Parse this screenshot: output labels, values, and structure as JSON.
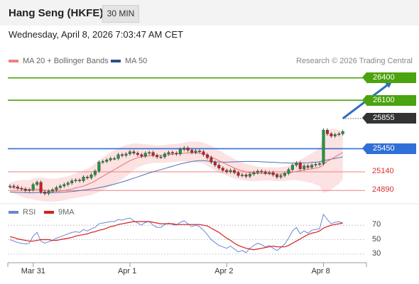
{
  "header": {
    "title": "Hang Seng (HKFE)",
    "timeframe": "30 MIN"
  },
  "timestamp": "Wednesday, April 8, 2026 7:03:47 AM CET",
  "legend": [
    {
      "label": "MA 20 + Bollinger Bands",
      "color": "#f08080"
    },
    {
      "label": "MA 50",
      "color": "#2c4f8c"
    }
  ],
  "credit": "Research © 2026 Trading Central",
  "colors": {
    "up": "#1a9a3a",
    "down": "#c82020",
    "resistance": "#4aa30f",
    "pivot": "#2f6fd8",
    "support": "#f08080",
    "current": "#333333",
    "arrow": "#2a6fbf",
    "band": "#fbd5d5",
    "rsi": "#6b86d6",
    "rsi_ma": "#d41f1f"
  },
  "chart_data": [
    {
      "type": "line",
      "name": "price",
      "x_ticks": [
        "Mar 31",
        "Apr 1",
        "Apr 2",
        "Apr 8"
      ],
      "x_tick_index": [
        6,
        31,
        56,
        81
      ],
      "ylim": [
        24750,
        26530
      ],
      "close": [
        24950,
        24940,
        24920,
        24910,
        24890,
        24900,
        24970,
        25000,
        24870,
        24850,
        24880,
        24900,
        24930,
        24950,
        24970,
        24990,
        25020,
        25030,
        25020,
        25070,
        25060,
        25100,
        25150,
        25270,
        25280,
        25300,
        25320,
        25320,
        25370,
        25360,
        25380,
        25410,
        25390,
        25370,
        25350,
        25390,
        25400,
        25360,
        25340,
        25340,
        25380,
        25400,
        25390,
        25380,
        25440,
        25460,
        25430,
        25400,
        25420,
        25410,
        25370,
        25330,
        25270,
        25230,
        25190,
        25160,
        25140,
        25160,
        25130,
        25090,
        25100,
        25080,
        25110,
        25130,
        25150,
        25140,
        25120,
        25130,
        25100,
        25070,
        25090,
        25120,
        25170,
        25230,
        25260,
        25180,
        25220,
        25200,
        25230,
        25240,
        25250,
        25700,
        25650,
        25620,
        25640,
        25650,
        25680
      ],
      "ma20": [
        24930,
        24925,
        24920,
        24915,
        24905,
        24900,
        24905,
        24910,
        24905,
        24895,
        24885,
        24880,
        24880,
        24885,
        24890,
        24900,
        24910,
        24925,
        24935,
        24950,
        24970,
        24990,
        25020,
        25050,
        25080,
        25110,
        25140,
        25170,
        25200,
        25230,
        25260,
        25290,
        25310,
        25330,
        25340,
        25350,
        25355,
        25360,
        25360,
        25360,
        25365,
        25370,
        25375,
        25380,
        25385,
        25390,
        25395,
        25395,
        25395,
        25390,
        25380,
        25360,
        25340,
        25315,
        25290,
        25265,
        25240,
        25215,
        25190,
        25170,
        25155,
        25140,
        25130,
        25125,
        25120,
        25120,
        25118,
        25115,
        25112,
        25110,
        25112,
        25118,
        25125,
        25135,
        25145,
        25155,
        25165,
        25175,
        25180,
        25190,
        25200,
        25240,
        25280,
        25310,
        25340,
        25370,
        25400
      ],
      "ma50": [
        24870,
        24868,
        24866,
        24864,
        24862,
        24860,
        24860,
        24862,
        24862,
        24860,
        24860,
        24860,
        24862,
        24865,
        24868,
        24872,
        24876,
        24882,
        24888,
        24895,
        24902,
        24910,
        24918,
        24928,
        24938,
        24950,
        24962,
        24975,
        24990,
        25005,
        25020,
        25038,
        25055,
        25072,
        25090,
        25108,
        25125,
        25140,
        25155,
        25170,
        25185,
        25200,
        25215,
        25230,
        25245,
        25258,
        25268,
        25278,
        25285,
        25290,
        25290,
        25285,
        25280,
        25275,
        25272,
        25270,
        25270,
        25272,
        25274,
        25276,
        25278,
        25280,
        25280,
        25280,
        25278,
        25275,
        25272,
        25270,
        25268,
        25265,
        25262,
        25260,
        25258,
        25258,
        25258,
        25258,
        25260,
        25262,
        25266,
        25270,
        25275,
        25290,
        25300,
        25310,
        25320,
        25330,
        25340
      ],
      "bb_upper": [
        25000,
        25010,
        25020,
        25030,
        25030,
        25030,
        25050,
        25060,
        25060,
        25060,
        25050,
        25050,
        25050,
        25060,
        25070,
        25080,
        25100,
        25120,
        25140,
        25160,
        25180,
        25210,
        25250,
        25290,
        25330,
        25370,
        25400,
        25430,
        25460,
        25480,
        25500,
        25510,
        25520,
        25520,
        25515,
        25510,
        25505,
        25500,
        25495,
        25495,
        25500,
        25505,
        25510,
        25515,
        25520,
        25530,
        25540,
        25545,
        25545,
        25540,
        25530,
        25510,
        25490,
        25460,
        25430,
        25400,
        25370,
        25340,
        25310,
        25290,
        25270,
        25250,
        25235,
        25220,
        25210,
        25205,
        25200,
        25200,
        25200,
        25200,
        25205,
        25210,
        25220,
        25240,
        25270,
        25300,
        25330,
        25360,
        25390,
        25420,
        25460,
        25620,
        25700,
        25720,
        25720,
        25700,
        25680
      ],
      "bb_lower": [
        24860,
        24850,
        24830,
        24810,
        24790,
        24780,
        24770,
        24760,
        24750,
        24740,
        24740,
        24740,
        24745,
        24750,
        24760,
        24770,
        24780,
        24790,
        24800,
        24810,
        24820,
        24830,
        24850,
        24870,
        24890,
        24920,
        24950,
        24980,
        25010,
        25040,
        25080,
        25120,
        25160,
        25200,
        25220,
        25240,
        25250,
        25260,
        25260,
        25260,
        25260,
        25265,
        25270,
        25275,
        25280,
        25280,
        25275,
        25270,
        25265,
        25260,
        25250,
        25220,
        25190,
        25160,
        25130,
        25110,
        25090,
        25070,
        25050,
        25040,
        25030,
        25020,
        25015,
        25015,
        25015,
        25020,
        25025,
        25025,
        25020,
        25015,
        25015,
        25020,
        25025,
        25030,
        25030,
        25020,
        25010,
        25000,
        24990,
        24970,
        24950,
        24860,
        24870,
        24900,
        24940,
        24980,
        25040
      ],
      "levels": [
        {
          "value": 26400,
          "label": "26400",
          "kind": "resistance"
        },
        {
          "value": 26100,
          "label": "26100",
          "kind": "resistance"
        },
        {
          "value": 25855,
          "label": "25855",
          "kind": "current"
        },
        {
          "value": 25450,
          "label": "25450",
          "kind": "pivot"
        },
        {
          "value": 25140,
          "label": "25140",
          "kind": "support"
        },
        {
          "value": 24890,
          "label": "24890",
          "kind": "support"
        }
      ],
      "arrow": {
        "from_index": 86,
        "from_value": 25855,
        "to_index": 99,
        "to_value": 26380
      }
    },
    {
      "type": "line",
      "name": "rsi",
      "legend": [
        {
          "label": "RSI",
          "color": "#6b86d6"
        },
        {
          "label": "9MA",
          "color": "#d41f1f"
        }
      ],
      "ylim": [
        20,
        82
      ],
      "y_ticks": [
        70,
        50,
        30
      ],
      "rsi": [
        50,
        48,
        46,
        45,
        44,
        45,
        55,
        60,
        48,
        45,
        47,
        49,
        52,
        54,
        56,
        58,
        60,
        61,
        60,
        64,
        62,
        65,
        67,
        72,
        73,
        74,
        75,
        75,
        78,
        77,
        79,
        80,
        76,
        73,
        70,
        74,
        75,
        70,
        67,
        67,
        71,
        73,
        71,
        70,
        74,
        76,
        72,
        68,
        70,
        68,
        63,
        57,
        50,
        46,
        42,
        40,
        38,
        41,
        37,
        33,
        35,
        32,
        38,
        42,
        45,
        43,
        40,
        42,
        38,
        35,
        39,
        44,
        52,
        62,
        67,
        58,
        62,
        59,
        63,
        64,
        65,
        85,
        78,
        72,
        74,
        75,
        73
      ],
      "rsi_ma": [
        54,
        53,
        51,
        50,
        49,
        48,
        48,
        49,
        50,
        50,
        50,
        49,
        49,
        50,
        51,
        52,
        53,
        55,
        56,
        57,
        58,
        60,
        61,
        63,
        64,
        66,
        68,
        69,
        71,
        72,
        73,
        74,
        75,
        75,
        75,
        75,
        75,
        74,
        73,
        72,
        72,
        72,
        72,
        71,
        71,
        71,
        71,
        71,
        71,
        71,
        70,
        69,
        66,
        63,
        60,
        56,
        52,
        49,
        45,
        42,
        40,
        38,
        37,
        36,
        37,
        38,
        39,
        40,
        41,
        40,
        40,
        40,
        42,
        45,
        48,
        51,
        54,
        57,
        59,
        60,
        62,
        66,
        68,
        70,
        71,
        72,
        73
      ]
    }
  ]
}
